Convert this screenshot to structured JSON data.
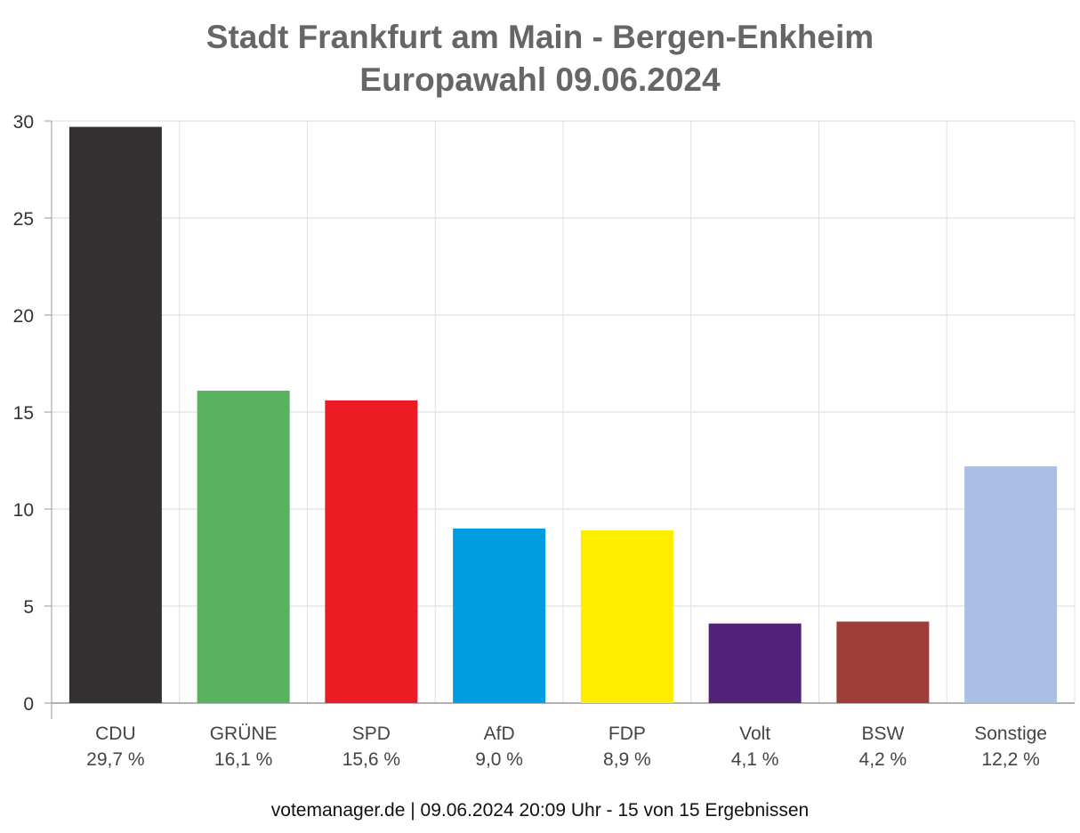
{
  "title": {
    "line1": "Stadt Frankfurt am Main - Bergen-Enkheim",
    "line2": "Europawahl 09.06.2024"
  },
  "footer": "votemanager.de | 09.06.2024 20:09 Uhr - 15 von 15 Ergebnissen",
  "chart_data": {
    "type": "bar",
    "categories": [
      "CDU",
      "GRÜNE",
      "SPD",
      "AfD",
      "FDP",
      "Volt",
      "BSW",
      "Sonstige"
    ],
    "values": [
      29.7,
      16.1,
      15.6,
      9.0,
      8.9,
      4.1,
      4.2,
      12.2
    ],
    "value_labels": [
      "29,7 %",
      "16,1 %",
      "15,6 %",
      "9,0 %",
      "8,9 %",
      "4,1 %",
      "4,2 %",
      "12,2 %"
    ],
    "colors": [
      "#333132",
      "#58b25e",
      "#ed1c24",
      "#009ee0",
      "#ffed00",
      "#522178",
      "#9e3d37",
      "#aabfe3"
    ],
    "yticks": [
      0,
      5,
      10,
      15,
      20,
      25,
      30
    ],
    "ylim": [
      0,
      30
    ],
    "grid": true
  }
}
